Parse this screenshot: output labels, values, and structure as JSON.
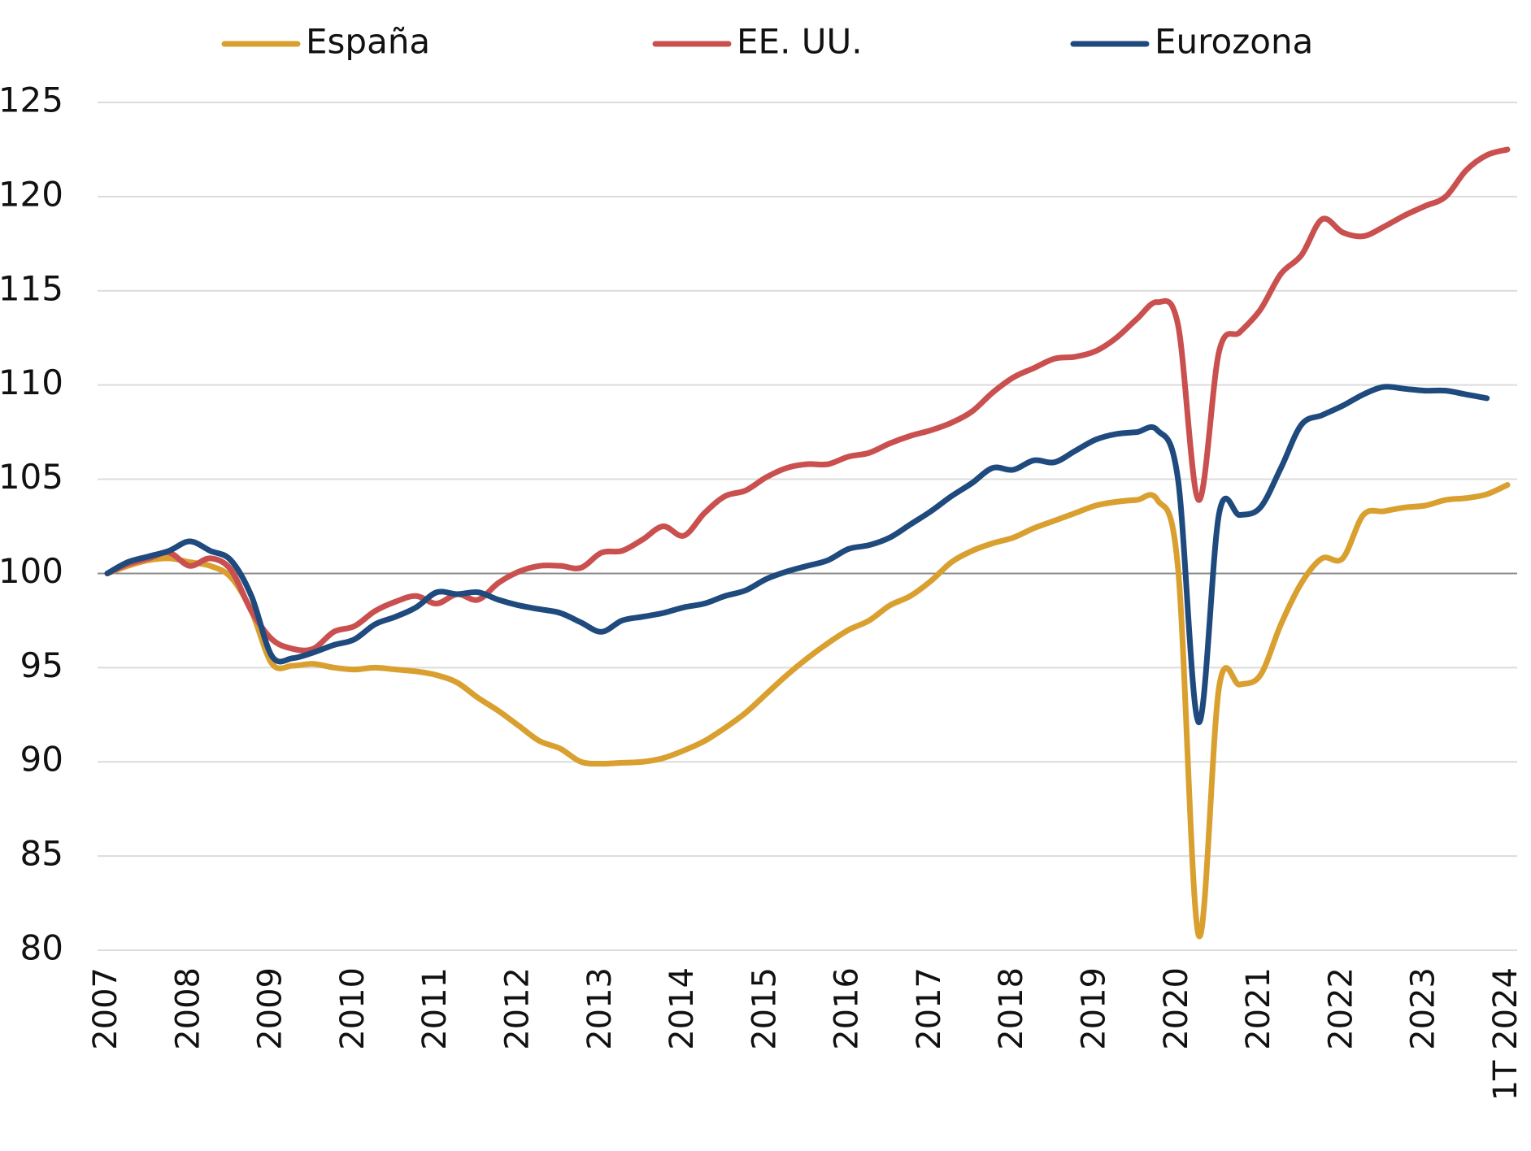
{
  "chart_data": {
    "type": "line",
    "categories": [
      "2007",
      null,
      null,
      null,
      "2008",
      null,
      null,
      null,
      "2009",
      null,
      null,
      null,
      "2010",
      null,
      null,
      null,
      "2011",
      null,
      null,
      null,
      "2012",
      null,
      null,
      null,
      "2013",
      null,
      null,
      null,
      "2014",
      null,
      null,
      null,
      "2015",
      null,
      null,
      null,
      "2016",
      null,
      null,
      null,
      "2017",
      null,
      null,
      null,
      "2018",
      null,
      null,
      null,
      "2019",
      null,
      null,
      null,
      "2020",
      null,
      null,
      null,
      "2021",
      null,
      null,
      null,
      "2022",
      null,
      null,
      null,
      "2023",
      null,
      null,
      null,
      "1T 2024"
    ],
    "series": [
      {
        "name": "España",
        "color": "#d9a030",
        "values": [
          100,
          100.4,
          100.7,
          100.8,
          100.6,
          100.4,
          99.8,
          98.0,
          95.2,
          95.1,
          95.2,
          95.0,
          94.9,
          95.0,
          94.9,
          94.8,
          94.6,
          94.2,
          93.4,
          92.7,
          91.9,
          91.1,
          90.7,
          90.0,
          89.9,
          89.95,
          90.0,
          90.2,
          90.6,
          91.1,
          91.8,
          92.6,
          93.6,
          94.6,
          95.5,
          96.3,
          97.0,
          97.5,
          98.3,
          98.8,
          99.6,
          100.6,
          101.2,
          101.6,
          101.9,
          102.4,
          102.8,
          103.2,
          103.6,
          103.8,
          103.9,
          103.9,
          100.3,
          80.8,
          94.0,
          94.1,
          94.6,
          97.3,
          99.5,
          100.8,
          100.8,
          103.1,
          103.3,
          103.5,
          103.6,
          103.9,
          104.0,
          104.2,
          104.7
        ]
      },
      {
        "name": "EE. UU.",
        "color": "#c9504f",
        "values": [
          100,
          100.5,
          100.8,
          101.1,
          100.4,
          100.8,
          100.2,
          98.0,
          96.5,
          96.0,
          96.0,
          96.9,
          97.2,
          98.0,
          98.5,
          98.8,
          98.4,
          98.9,
          98.6,
          99.5,
          100.1,
          100.4,
          100.4,
          100.3,
          101.1,
          101.2,
          101.8,
          102.5,
          102.0,
          103.2,
          104.1,
          104.4,
          105.1,
          105.6,
          105.8,
          105.8,
          106.2,
          106.4,
          106.9,
          107.3,
          107.6,
          108.0,
          108.6,
          109.6,
          110.4,
          110.9,
          111.4,
          111.5,
          111.8,
          112.5,
          113.5,
          114.4,
          113.2,
          103.9,
          111.8,
          112.8,
          114.0,
          115.9,
          116.9,
          118.8,
          118.1,
          117.9,
          118.4,
          119.0,
          119.5,
          120.0,
          121.4,
          122.2,
          122.5
        ]
      },
      {
        "name": "Eurozona",
        "color": "#1f4a7e",
        "values": [
          100,
          100.6,
          100.9,
          101.2,
          101.7,
          101.2,
          100.7,
          98.8,
          95.6,
          95.5,
          95.8,
          96.2,
          96.5,
          97.3,
          97.7,
          98.2,
          99.0,
          98.9,
          99.0,
          98.6,
          98.3,
          98.1,
          97.9,
          97.4,
          96.9,
          97.5,
          97.7,
          97.9,
          98.2,
          98.4,
          98.8,
          99.1,
          99.7,
          100.1,
          100.4,
          100.7,
          101.3,
          101.5,
          101.9,
          102.6,
          103.3,
          104.1,
          104.8,
          105.6,
          105.5,
          106.0,
          105.9,
          106.5,
          107.1,
          107.4,
          107.5,
          107.6,
          105.0,
          92.1,
          103.2,
          103.1,
          103.5,
          105.6,
          107.9,
          108.4,
          108.9,
          109.5,
          109.9,
          109.8,
          109.7,
          109.7,
          109.5,
          109.3,
          null
        ]
      }
    ],
    "ylim": [
      80,
      125
    ],
    "yticks": [
      80,
      85,
      90,
      95,
      100,
      105,
      110,
      115,
      120,
      125
    ],
    "grid": true,
    "baseline": 100,
    "legend": "top"
  }
}
